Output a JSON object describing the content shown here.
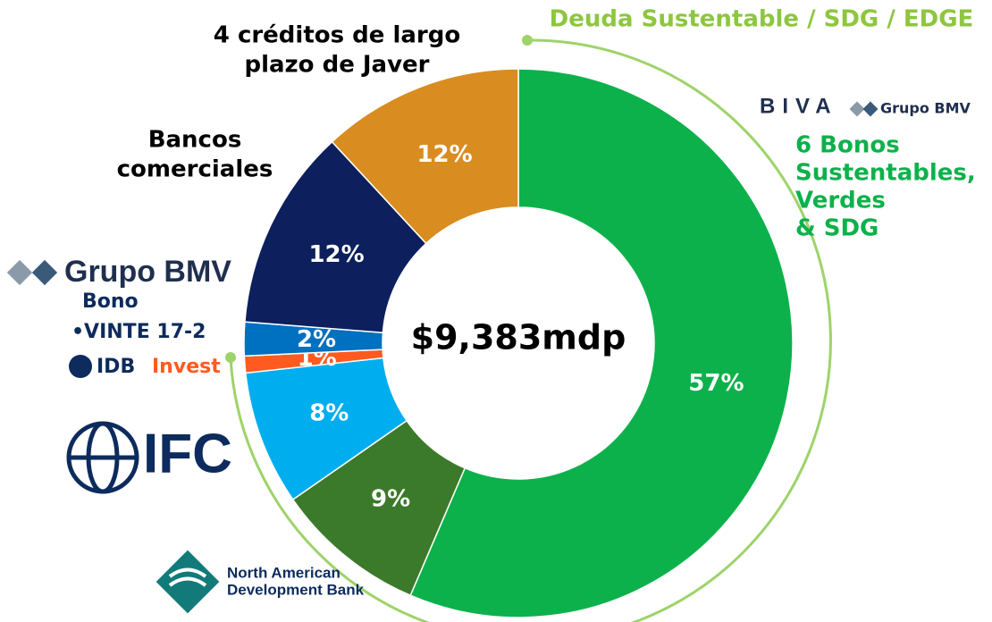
{
  "chart_data": {
    "type": "donut",
    "values": [
      57,
      9,
      8,
      1,
      2,
      12,
      12
    ],
    "value_labels": [
      "57%",
      "9%",
      "8%",
      "1%",
      "2%",
      "12%",
      "12%"
    ],
    "colors": [
      "#0db14b",
      "#3b7a2a",
      "#00aeef",
      "#ff5a1f",
      "#0070c0",
      "#0d1f5c",
      "#d98c20"
    ],
    "center_label": "$9,383mdp",
    "annotations": [
      [
        "Deuda Sustentable / SDG / EDGE"
      ],
      [
        "6 Bonos",
        "Sustentables,",
        "Verdes",
        "& SDG"
      ],
      [
        "4 créditos de largo",
        "plazo de Javer"
      ],
      [
        "Bancos",
        "comerciales"
      ],
      [
        "Bono",
        "•VINTE 17-2"
      ]
    ],
    "logos": [
      [
        "BIVA",
        "Grupo BMV"
      ],
      [
        "Grupo BMV"
      ],
      [
        "IDB",
        "Invest"
      ],
      [
        "IFC"
      ],
      [
        "North American",
        "Development Bank"
      ]
    ]
  }
}
